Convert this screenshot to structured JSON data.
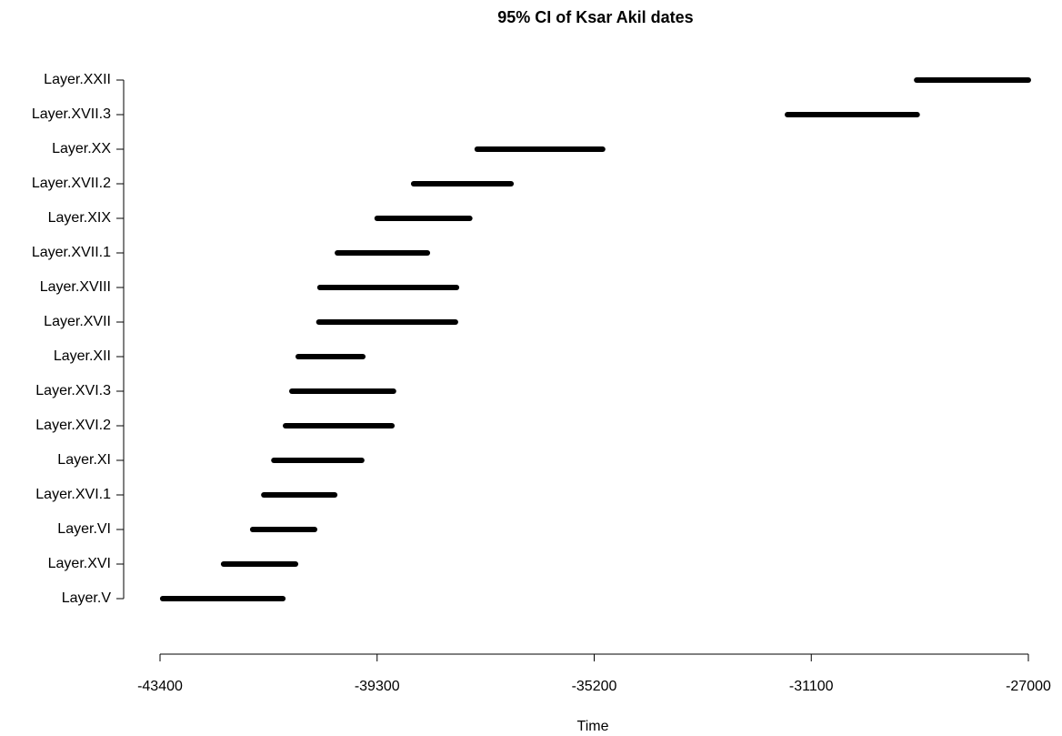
{
  "chart_data": {
    "type": "interval",
    "title": "95% CI of Ksar Akil dates",
    "x_label": "Time",
    "categories": [
      "Layer.V",
      "Layer.XVI",
      "Layer.VI",
      "Layer.XVI.1",
      "Layer.XI",
      "Layer.XVI.2",
      "Layer.XVI.3",
      "Layer.XII",
      "Layer.XVII",
      "Layer.XVIII",
      "Layer.XVII.1",
      "Layer.XIX",
      "Layer.XVII.2",
      "Layer.XX",
      "Layer.XVII.3",
      "Layer.XXII"
    ],
    "low": [
      -43350,
      -42200,
      -41650,
      -41440,
      -41250,
      -41030,
      -40910,
      -40790,
      -40400,
      -40380,
      -40050,
      -39300,
      -38610,
      -37410,
      -31550,
      -29110
    ],
    "high": [
      -41080,
      -40840,
      -40480,
      -40100,
      -39590,
      -39020,
      -38990,
      -39570,
      -37820,
      -37800,
      -38350,
      -37550,
      -36770,
      -35040,
      -29100,
      -27000
    ],
    "color": "#000000",
    "xlim": [
      -43400,
      -27000
    ],
    "xticks": [
      -43400,
      -39300,
      -35200,
      -31100,
      -27000
    ]
  }
}
